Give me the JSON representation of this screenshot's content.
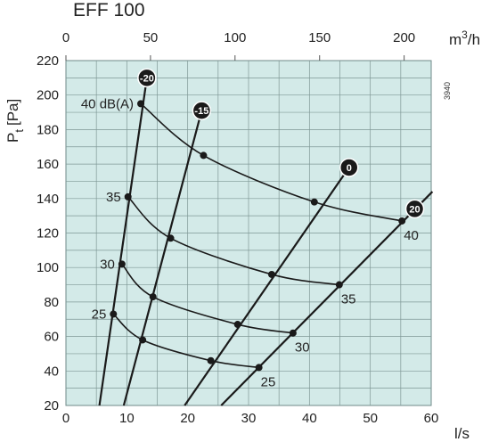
{
  "title": "EFF 100",
  "side_code": "3940",
  "chart_data": {
    "type": "line",
    "title": "EFF 100",
    "x_bottom": {
      "label": "l/s",
      "ticks": [
        0,
        10,
        20,
        30,
        40,
        50,
        60
      ],
      "range": [
        0,
        60
      ]
    },
    "x_top": {
      "label_base": "m",
      "label_sup": "3",
      "label_tail": "/h",
      "ticks": [
        0,
        50,
        100,
        150,
        200
      ],
      "range": [
        0,
        216
      ]
    },
    "y": {
      "label_main": "P",
      "label_sub": "t",
      "label_unit": "[Pa]",
      "ticks": [
        20,
        40,
        60,
        80,
        100,
        120,
        140,
        160,
        180,
        200,
        220
      ],
      "range": [
        20,
        220
      ]
    },
    "grid": true,
    "background_color": "#d3eae8",
    "line_color": "#1a1a1a",
    "damper_lines": [
      {
        "label": "-20",
        "points": [
          [
            5.5,
            20
          ],
          [
            13.3,
            210
          ]
        ],
        "badge_at": [
          13.3,
          210
        ]
      },
      {
        "label": "-15",
        "points": [
          [
            9.5,
            20
          ],
          [
            22.3,
            191
          ]
        ],
        "badge_at": [
          22.3,
          191
        ]
      },
      {
        "label": "0",
        "points": [
          [
            19.5,
            20
          ],
          [
            46.5,
            158
          ]
        ],
        "badge_at": [
          46.5,
          158
        ]
      },
      {
        "label": "20",
        "points": [
          [
            25.5,
            20
          ],
          [
            60.2,
            144
          ]
        ],
        "badge_at": [
          57.3,
          134
        ]
      }
    ],
    "sound_curves": [
      {
        "label": "40 dB(A)",
        "points": [
          [
            12.3,
            195
          ],
          [
            22.6,
            165
          ],
          [
            40.8,
            138
          ],
          [
            55.2,
            127
          ]
        ]
      },
      {
        "label": "35",
        "points": [
          [
            10.2,
            141
          ],
          [
            17.2,
            117
          ],
          [
            33.8,
            96
          ],
          [
            44.9,
            90
          ]
        ]
      },
      {
        "label": "30",
        "points": [
          [
            9.2,
            102
          ],
          [
            14.3,
            83
          ],
          [
            28.2,
            67
          ],
          [
            37.3,
            62
          ]
        ]
      },
      {
        "label": "25",
        "points": [
          [
            7.8,
            73
          ],
          [
            12.6,
            58
          ],
          [
            23.8,
            46
          ],
          [
            31.7,
            42
          ]
        ]
      }
    ],
    "sound_curve_end_labels": [
      {
        "text": "40",
        "at": [
          55.2,
          127
        ]
      },
      {
        "text": "35",
        "at": [
          44.9,
          90
        ]
      },
      {
        "text": "30",
        "at": [
          37.3,
          62
        ]
      },
      {
        "text": "25",
        "at": [
          31.7,
          42
        ]
      }
    ]
  }
}
